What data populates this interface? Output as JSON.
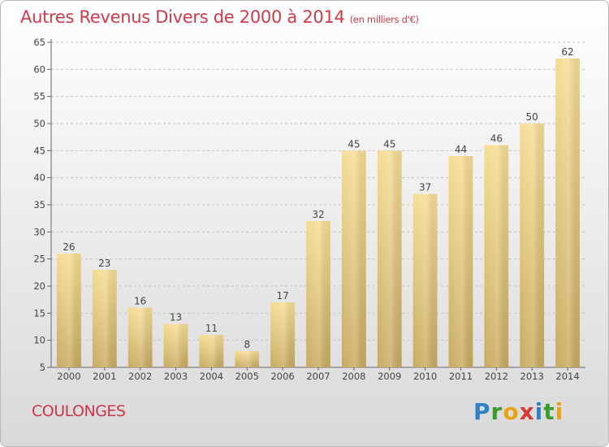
{
  "title": {
    "main": "Autres Revenus Divers de 2000 à 2014",
    "unit": "(en milliers d'€)"
  },
  "commune": "COULONGES",
  "logo": {
    "letters": [
      "P",
      "r",
      "o",
      "x",
      "i",
      "t",
      "i"
    ]
  },
  "chart_data": {
    "type": "bar",
    "categories": [
      "2000",
      "2001",
      "2002",
      "2003",
      "2004",
      "2005",
      "2006",
      "2007",
      "2008",
      "2009",
      "2010",
      "2011",
      "2012",
      "2013",
      "2014"
    ],
    "values": [
      26,
      23,
      16,
      13,
      11,
      8,
      17,
      32,
      45,
      45,
      37,
      44,
      46,
      50,
      62
    ],
    "ylim": [
      5,
      65
    ],
    "yticks": [
      5,
      10,
      15,
      20,
      25,
      30,
      35,
      40,
      45,
      50,
      55,
      60,
      65
    ],
    "grid": "horizontal dashed",
    "bar_color_top": "#f5dc93",
    "bar_color_bottom": "#c7a95e"
  }
}
